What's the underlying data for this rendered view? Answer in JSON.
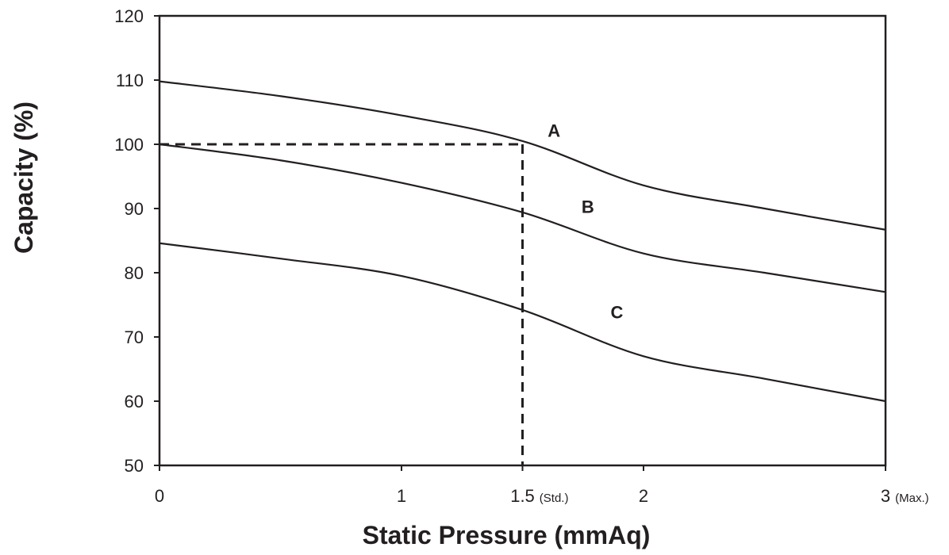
{
  "chart_data": {
    "type": "line",
    "xlabel": "Static Pressure (mmAq)",
    "ylabel": "Capacity (%)",
    "xlim": [
      0,
      3
    ],
    "ylim": [
      50,
      120
    ],
    "grid": false,
    "legend": "none",
    "x_ticks": [
      {
        "value": 0,
        "label": "0",
        "note": ""
      },
      {
        "value": 1,
        "label": "1",
        "note": ""
      },
      {
        "value": 1.5,
        "label": "1.5",
        "note": "(Std.)"
      },
      {
        "value": 2,
        "label": "2",
        "note": ""
      },
      {
        "value": 3,
        "label": "3",
        "note": "(Max.)"
      }
    ],
    "y_ticks": [
      {
        "value": 50,
        "label": "50"
      },
      {
        "value": 60,
        "label": "60"
      },
      {
        "value": 70,
        "label": "70"
      },
      {
        "value": 80,
        "label": "80"
      },
      {
        "value": 90,
        "label": "90"
      },
      {
        "value": 100,
        "label": "100"
      },
      {
        "value": 110,
        "label": "110"
      },
      {
        "value": 120,
        "label": "120"
      }
    ],
    "series": [
      {
        "name": "A",
        "x": [
          0,
          0.5,
          1,
          1.5,
          2,
          2.5,
          3
        ],
        "y": [
          109.8,
          107.5,
          104.5,
          100.5,
          93.6,
          90.0,
          86.7
        ],
        "label_at": {
          "x": 1.63,
          "y": 101.2
        }
      },
      {
        "name": "B",
        "x": [
          0,
          0.5,
          1,
          1.5,
          2,
          2.5,
          3
        ],
        "y": [
          100.0,
          97.5,
          94.0,
          89.4,
          83.0,
          80.0,
          77.0
        ],
        "label_at": {
          "x": 1.77,
          "y": 89.3
        }
      },
      {
        "name": "C",
        "x": [
          0,
          0.5,
          1,
          1.5,
          2,
          2.5,
          3
        ],
        "y": [
          84.6,
          82.2,
          79.5,
          74.2,
          67.0,
          63.5,
          60.0
        ],
        "label_at": {
          "x": 1.89,
          "y": 72.9
        }
      }
    ],
    "reference": {
      "x": 1.5,
      "y": 100,
      "style": "dashed"
    },
    "colors": {
      "line": "#231f20",
      "background": "#ffffff"
    }
  }
}
